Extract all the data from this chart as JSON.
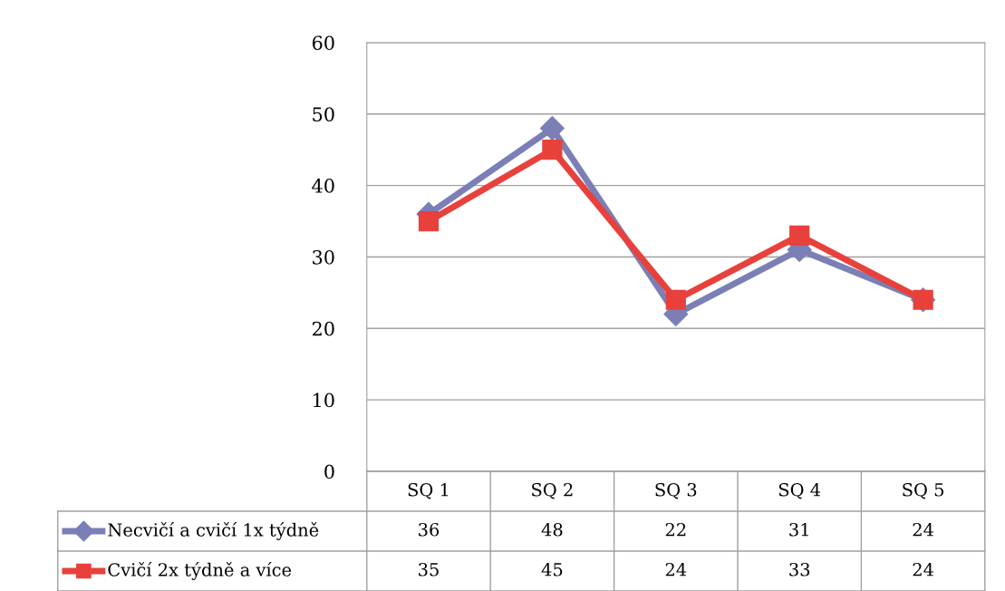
{
  "chart_data": {
    "type": "line",
    "categories": [
      "SQ 1",
      "SQ 2",
      "SQ 3",
      "SQ 4",
      "SQ 5"
    ],
    "series": [
      {
        "name": "Necvičí a cvičí 1x týdně",
        "color": "#7b7fb5",
        "marker": "diamond",
        "values": [
          36,
          48,
          22,
          31,
          24
        ]
      },
      {
        "name": "Cvičí 2x týdně a více",
        "color": "#e8413c",
        "marker": "square",
        "values": [
          35,
          45,
          24,
          33,
          24
        ]
      }
    ],
    "ylim": [
      0,
      60
    ],
    "yticks": [
      0,
      10,
      20,
      30,
      40,
      50,
      60
    ],
    "grid": "y",
    "legend": "bottom",
    "data_labels": true
  }
}
